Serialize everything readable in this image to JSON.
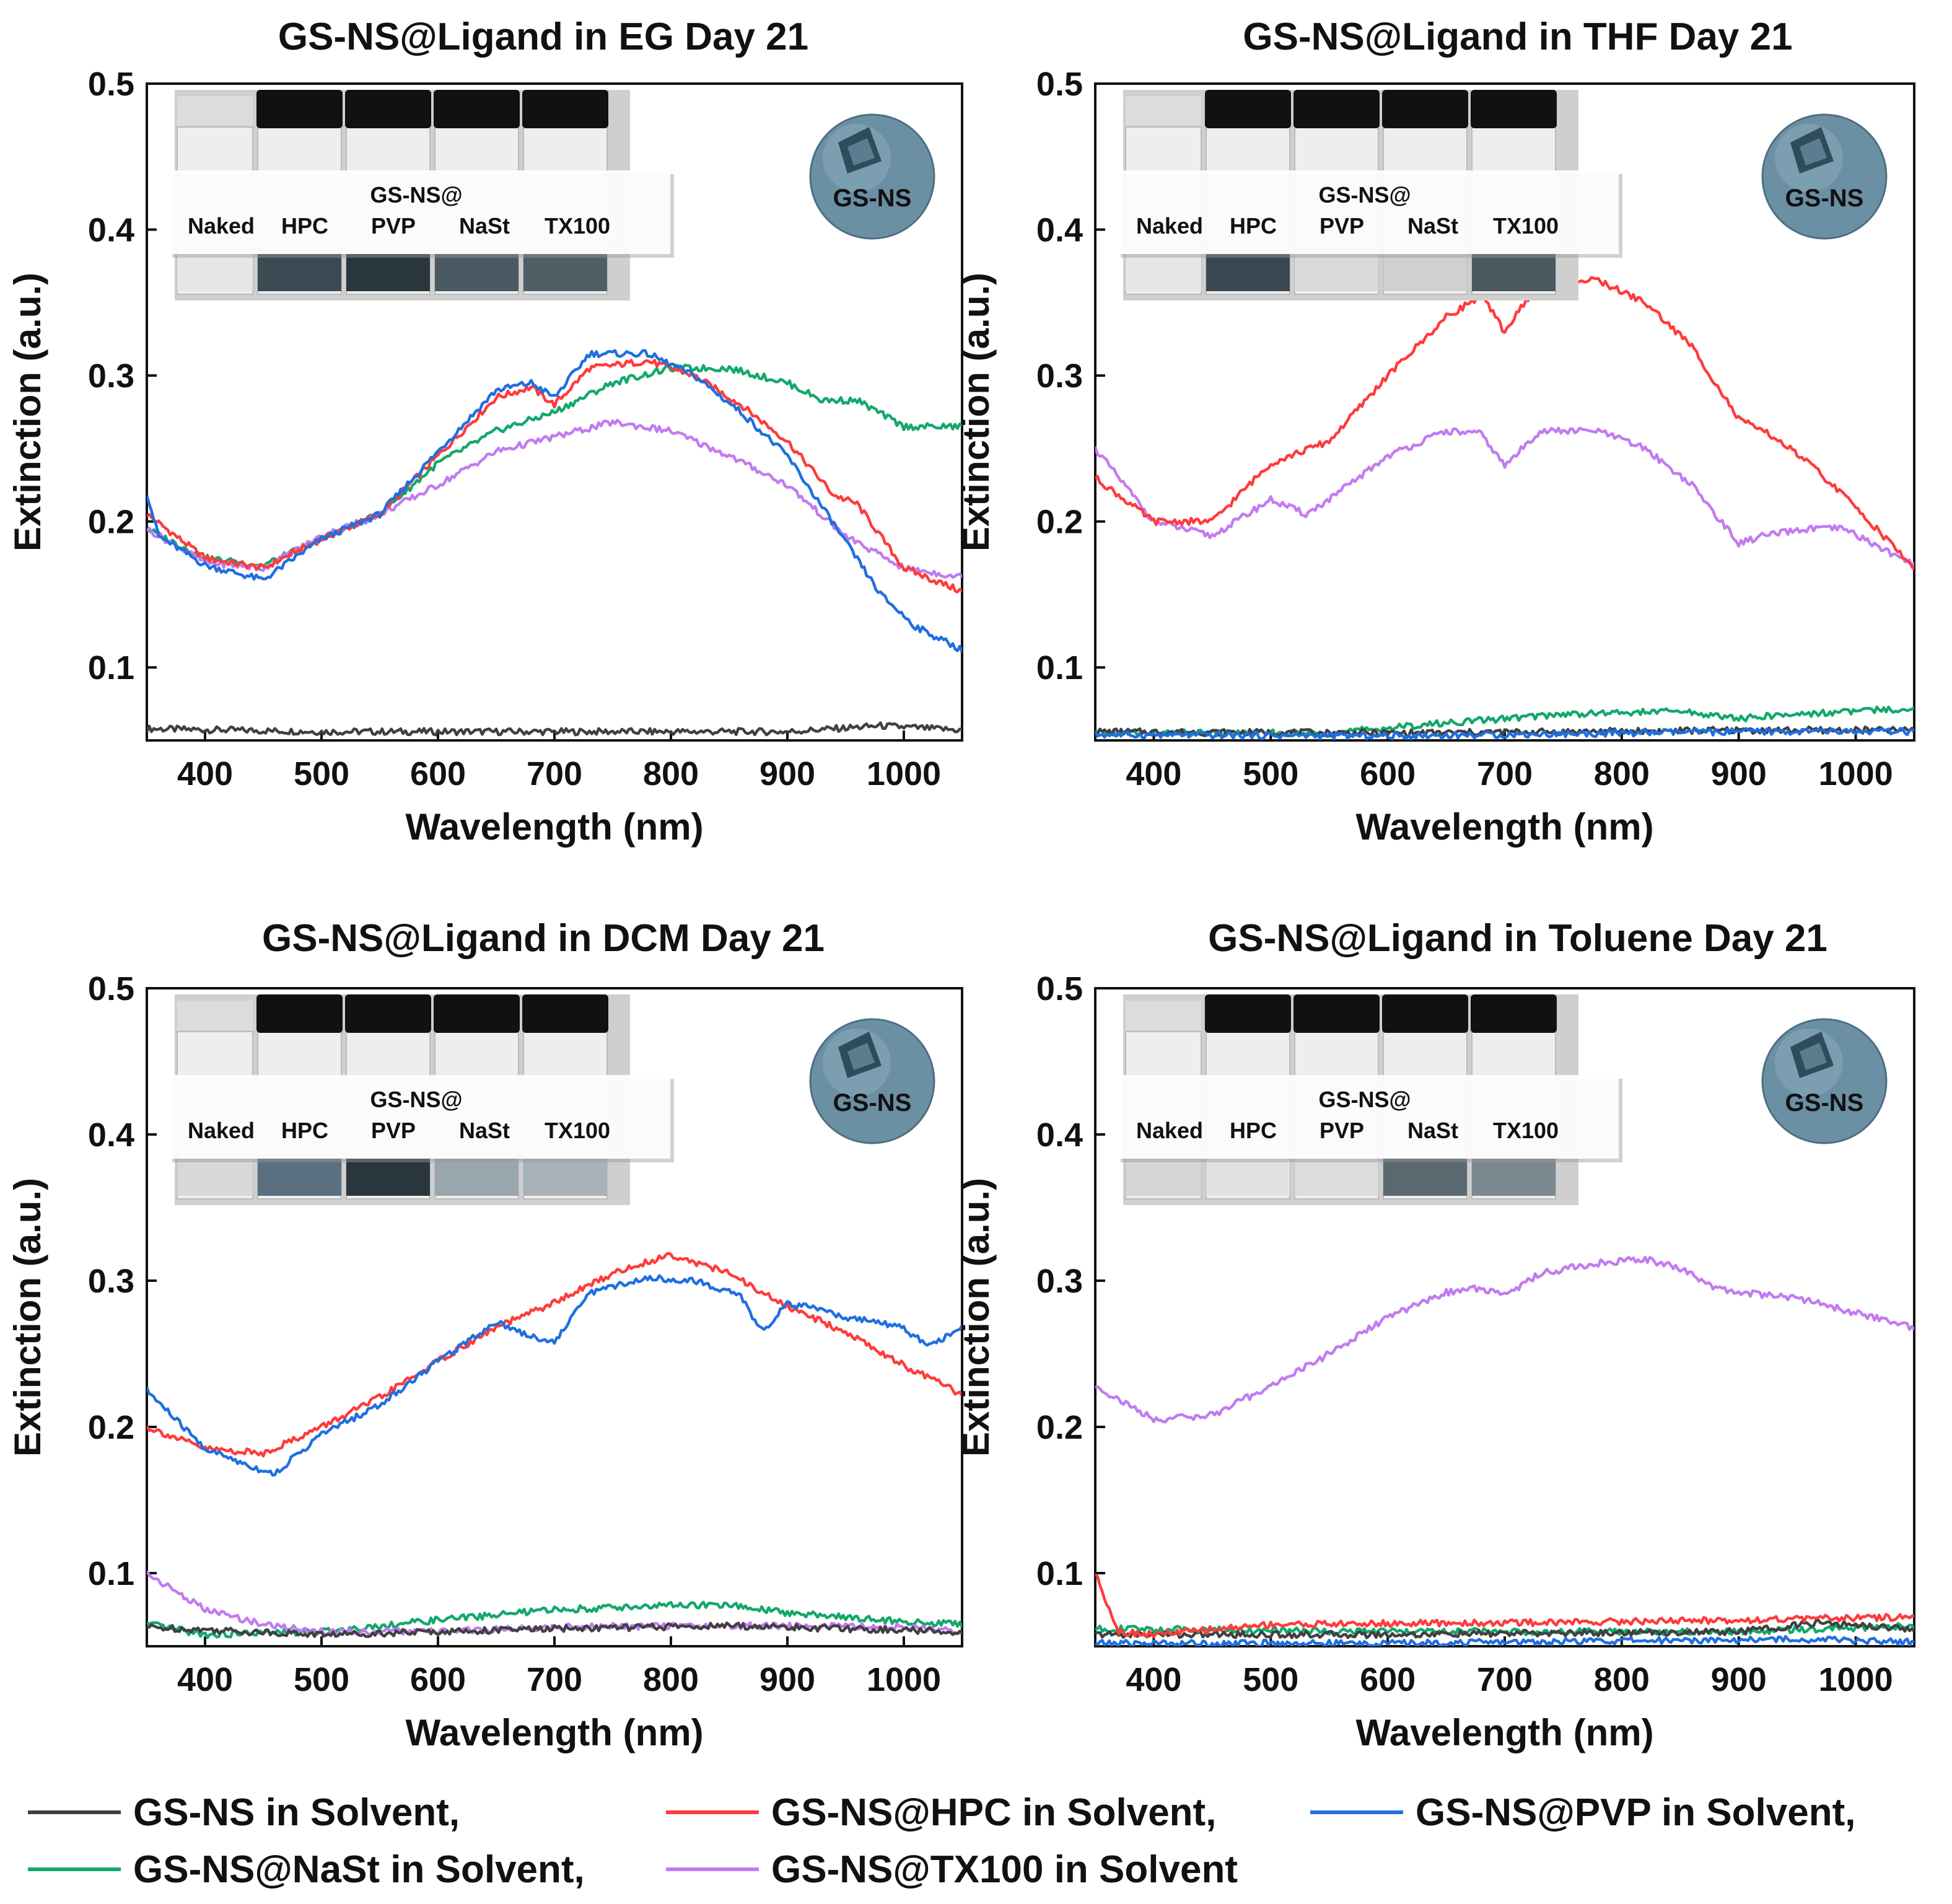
{
  "figure": {
    "legend": [
      {
        "label": "GS-NS in Solvent,",
        "color": "#404040"
      },
      {
        "label": "GS-NS@HPC in Solvent,",
        "color": "#ff3b3b"
      },
      {
        "label": "GS-NS@PVP in Solvent,",
        "color": "#1f6fe0"
      },
      {
        "label": "GS-NS@NaSt in Solvent,",
        "color": "#13a86b"
      },
      {
        "label": "GS-NS@TX100 in Solvent",
        "color": "#c27bf0"
      }
    ],
    "sphere_label": "GS-NS",
    "inset": {
      "header": "GS-NS@",
      "labels": [
        "Naked",
        "HPC",
        "PVP",
        "NaSt",
        "TX100"
      ]
    }
  },
  "chart_data": [
    {
      "type": "line",
      "title": "GS-NS@Ligand in EG Day 21",
      "xlabel": "Wavelength (nm)",
      "ylabel": "Extinction (a.u.)",
      "xlim": [
        350,
        1050
      ],
      "ylim": [
        0.05,
        0.5
      ],
      "xticks": [
        400,
        500,
        600,
        700,
        800,
        900,
        1000
      ],
      "yticks": [
        0.1,
        0.2,
        0.3,
        0.4,
        0.5
      ],
      "vial_colors": [
        "#e6e6e6",
        "#3c4a54",
        "#2a363e",
        "#4a5962",
        "#505e66"
      ],
      "series": [
        {
          "name": "GS-NS in Solvent",
          "color": "#404040",
          "x": [
            350,
            500,
            700,
            900,
            960,
            980,
            1050
          ],
          "y": [
            0.058,
            0.056,
            0.056,
            0.056,
            0.059,
            0.06,
            0.057
          ]
        },
        {
          "name": "GS-NS@HPC in Solvent",
          "color": "#ff3b3b",
          "x": [
            350,
            400,
            450,
            500,
            550,
            600,
            650,
            680,
            700,
            730,
            780,
            820,
            860,
            900,
            940,
            960,
            1000,
            1050
          ],
          "y": [
            0.205,
            0.175,
            0.168,
            0.188,
            0.205,
            0.245,
            0.285,
            0.292,
            0.28,
            0.305,
            0.31,
            0.3,
            0.28,
            0.255,
            0.218,
            0.212,
            0.168,
            0.152
          ]
        },
        {
          "name": "GS-NS@PVP in Solvent",
          "color": "#1f6fe0",
          "x": [
            350,
            360,
            400,
            450,
            500,
            550,
            600,
            650,
            680,
            700,
            730,
            780,
            820,
            860,
            900,
            940,
            980,
            1010,
            1050
          ],
          "y": [
            0.22,
            0.19,
            0.17,
            0.16,
            0.188,
            0.205,
            0.248,
            0.29,
            0.295,
            0.285,
            0.315,
            0.315,
            0.3,
            0.275,
            0.245,
            0.198,
            0.15,
            0.128,
            0.112
          ]
        },
        {
          "name": "GS-NS@NaSt in Solvent",
          "color": "#13a86b",
          "x": [
            350,
            400,
            450,
            500,
            550,
            600,
            650,
            700,
            750,
            800,
            850,
            900,
            930,
            960,
            1000,
            1050
          ],
          "y": [
            0.195,
            0.175,
            0.17,
            0.188,
            0.205,
            0.24,
            0.262,
            0.275,
            0.295,
            0.305,
            0.305,
            0.295,
            0.283,
            0.283,
            0.265,
            0.265
          ]
        },
        {
          "name": "GS-NS@TX100 in Solvent",
          "color": "#c27bf0",
          "x": [
            350,
            400,
            450,
            500,
            550,
            600,
            650,
            700,
            750,
            800,
            850,
            900,
            950,
            1000,
            1050
          ],
          "y": [
            0.195,
            0.172,
            0.168,
            0.19,
            0.205,
            0.225,
            0.248,
            0.258,
            0.268,
            0.262,
            0.245,
            0.225,
            0.19,
            0.168,
            0.162
          ]
        }
      ]
    },
    {
      "type": "line",
      "title": "GS-NS@Ligand in THF Day 21",
      "xlabel": "Wavelength (nm)",
      "ylabel": "Extinction (a.u.)",
      "xlim": [
        350,
        1050
      ],
      "ylim": [
        0.05,
        0.5
      ],
      "xticks": [
        400,
        500,
        600,
        700,
        800,
        900,
        1000
      ],
      "yticks": [
        0.1,
        0.2,
        0.3,
        0.4,
        0.5
      ],
      "vial_colors": [
        "#e6e6e6",
        "#3a4750",
        "#dadada",
        "#d0d0d0",
        "#4a5860"
      ],
      "series": [
        {
          "name": "GS-NS in Solvent",
          "color": "#404040",
          "x": [
            350,
            600,
            900,
            1050
          ],
          "y": [
            0.056,
            0.055,
            0.057,
            0.057
          ]
        },
        {
          "name": "GS-NS@HPC in Solvent",
          "color": "#ff3b3b",
          "x": [
            350,
            400,
            450,
            500,
            550,
            600,
            650,
            680,
            700,
            730,
            780,
            820,
            860,
            900,
            930,
            960,
            1000,
            1050
          ],
          "y": [
            0.23,
            0.2,
            0.2,
            0.24,
            0.255,
            0.3,
            0.34,
            0.355,
            0.33,
            0.365,
            0.365,
            0.35,
            0.32,
            0.27,
            0.258,
            0.24,
            0.21,
            0.168
          ]
        },
        {
          "name": "GS-NS@PVP in Solvent",
          "color": "#1f6fe0",
          "x": [
            350,
            600,
            900,
            1050
          ],
          "y": [
            0.054,
            0.053,
            0.056,
            0.056
          ]
        },
        {
          "name": "GS-NS@NaSt in Solvent",
          "color": "#13a86b",
          "x": [
            350,
            550,
            650,
            750,
            850,
            900,
            950,
            1000,
            1050
          ],
          "y": [
            0.055,
            0.055,
            0.062,
            0.068,
            0.07,
            0.065,
            0.068,
            0.07,
            0.072
          ]
        },
        {
          "name": "GS-NS@TX100 in Solvent",
          "color": "#c27bf0",
          "x": [
            350,
            400,
            450,
            500,
            530,
            550,
            600,
            650,
            680,
            700,
            730,
            780,
            820,
            860,
            900,
            920,
            960,
            990,
            1050
          ],
          "y": [
            0.25,
            0.2,
            0.19,
            0.215,
            0.205,
            0.215,
            0.245,
            0.262,
            0.26,
            0.238,
            0.262,
            0.262,
            0.25,
            0.225,
            0.185,
            0.19,
            0.195,
            0.195,
            0.17
          ]
        }
      ]
    },
    {
      "type": "line",
      "title": "GS-NS@Ligand in DCM Day 21",
      "xlabel": "Wavelength (nm)",
      "ylabel": "Extinction (a.u.)",
      "xlim": [
        350,
        1050
      ],
      "ylim": [
        0.05,
        0.5
      ],
      "xticks": [
        400,
        500,
        600,
        700,
        800,
        900,
        1000
      ],
      "yticks": [
        0.1,
        0.2,
        0.3,
        0.4,
        0.5
      ],
      "vial_colors": [
        "#d8d8d8",
        "#5a7080",
        "#2a363e",
        "#9aa6ae",
        "#a8b2b8"
      ],
      "series": [
        {
          "name": "GS-NS in Solvent",
          "color": "#404040",
          "x": [
            350,
            500,
            700,
            850,
            1050
          ],
          "y": [
            0.063,
            0.058,
            0.062,
            0.064,
            0.06
          ]
        },
        {
          "name": "GS-NS@HPC in Solvent",
          "color": "#ff3b3b",
          "x": [
            350,
            400,
            450,
            500,
            550,
            600,
            650,
            700,
            750,
            800,
            850,
            900,
            950,
            1000,
            1050
          ],
          "y": [
            0.2,
            0.185,
            0.182,
            0.2,
            0.22,
            0.245,
            0.268,
            0.285,
            0.305,
            0.318,
            0.305,
            0.282,
            0.265,
            0.242,
            0.222
          ]
        },
        {
          "name": "GS-NS@PVP in Solvent",
          "color": "#1f6fe0",
          "x": [
            350,
            400,
            450,
            460,
            500,
            550,
            600,
            650,
            680,
            700,
            730,
            780,
            820,
            860,
            870,
            880,
            900,
            950,
            1000,
            1020,
            1050
          ],
          "y": [
            0.225,
            0.185,
            0.17,
            0.168,
            0.195,
            0.215,
            0.245,
            0.272,
            0.262,
            0.258,
            0.292,
            0.302,
            0.3,
            0.29,
            0.275,
            0.265,
            0.285,
            0.275,
            0.268,
            0.255,
            0.268
          ]
        },
        {
          "name": "GS-NS@NaSt in Solvent",
          "color": "#13a86b",
          "x": [
            350,
            400,
            500,
            600,
            700,
            800,
            850,
            900,
            1000,
            1050
          ],
          "y": [
            0.065,
            0.058,
            0.06,
            0.068,
            0.075,
            0.078,
            0.078,
            0.073,
            0.067,
            0.065
          ]
        },
        {
          "name": "GS-NS@TX100 in Solvent",
          "color": "#c27bf0",
          "x": [
            350,
            360,
            400,
            450,
            500,
            550,
            600,
            700,
            800,
            900,
            1000,
            1050
          ],
          "y": [
            0.1,
            0.095,
            0.075,
            0.065,
            0.06,
            0.06,
            0.06,
            0.063,
            0.064,
            0.064,
            0.063,
            0.06
          ]
        }
      ]
    },
    {
      "type": "line",
      "title": "GS-NS@Ligand in Toluene Day 21",
      "xlabel": "Wavelength (nm)",
      "ylabel": "Extinction (a.u.)",
      "xlim": [
        350,
        1050
      ],
      "ylim": [
        0.05,
        0.5
      ],
      "xticks": [
        400,
        500,
        600,
        700,
        800,
        900,
        1000
      ],
      "yticks": [
        0.1,
        0.2,
        0.3,
        0.4,
        0.5
      ],
      "vial_colors": [
        "#d6d6d6",
        "#e2e2e2",
        "#dcdcdc",
        "#5a6870",
        "#7a8890"
      ],
      "series": [
        {
          "name": "GS-NS in Solvent",
          "color": "#404040",
          "x": [
            350,
            600,
            900,
            970,
            1050
          ],
          "y": [
            0.058,
            0.058,
            0.06,
            0.066,
            0.062
          ]
        },
        {
          "name": "GS-NS@HPC in Solvent",
          "color": "#ff3b3b",
          "x": [
            350,
            360,
            370,
            400,
            500,
            700,
            900,
            1050
          ],
          "y": [
            0.1,
            0.08,
            0.06,
            0.058,
            0.065,
            0.066,
            0.068,
            0.07
          ]
        },
        {
          "name": "GS-NS@PVP in Solvent",
          "color": "#1f6fe0",
          "x": [
            350,
            600,
            950,
            1050
          ],
          "y": [
            0.052,
            0.052,
            0.055,
            0.053
          ]
        },
        {
          "name": "GS-NS@NaSt in Solvent",
          "color": "#13a86b",
          "x": [
            350,
            600,
            900,
            1050
          ],
          "y": [
            0.062,
            0.06,
            0.06,
            0.064
          ]
        },
        {
          "name": "GS-NS@TX100 in Solvent",
          "color": "#c27bf0",
          "x": [
            350,
            400,
            450,
            500,
            550,
            600,
            650,
            680,
            700,
            730,
            780,
            820,
            850,
            880,
            900,
            950,
            1000,
            1050
          ],
          "y": [
            0.228,
            0.205,
            0.208,
            0.228,
            0.25,
            0.275,
            0.292,
            0.295,
            0.29,
            0.305,
            0.312,
            0.315,
            0.308,
            0.295,
            0.292,
            0.288,
            0.278,
            0.268
          ]
        }
      ]
    }
  ]
}
